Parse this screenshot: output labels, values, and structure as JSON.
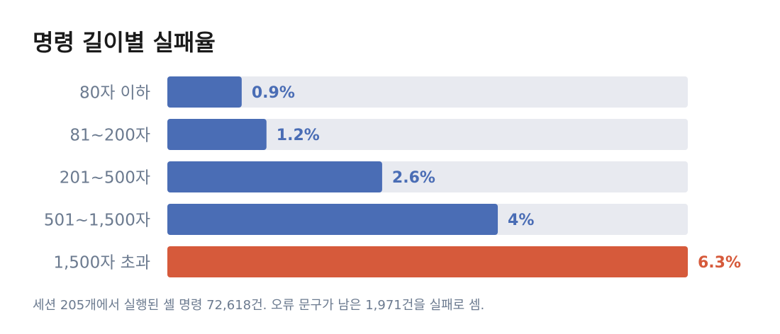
{
  "chart_data": {
    "type": "bar",
    "orientation": "horizontal",
    "title": "명령 길이별 실패율",
    "categories": [
      "80자 이하",
      "81~200자",
      "201~500자",
      "501~1,500자",
      "1,500자 초과"
    ],
    "values": [
      0.9,
      1.2,
      2.6,
      4,
      6.3
    ],
    "value_labels": [
      "0.9%",
      "1.2%",
      "2.6%",
      "4%",
      "6.3%"
    ],
    "colors": [
      "#4a6db5",
      "#4a6db5",
      "#4a6db5",
      "#4a6db5",
      "#d65a3b"
    ],
    "xlim": [
      0,
      6.3
    ],
    "note": "세션 205개에서 실행된 셸 명령 72,618건. 오류 문구가 남은 1,971건을 실패로 셈."
  }
}
